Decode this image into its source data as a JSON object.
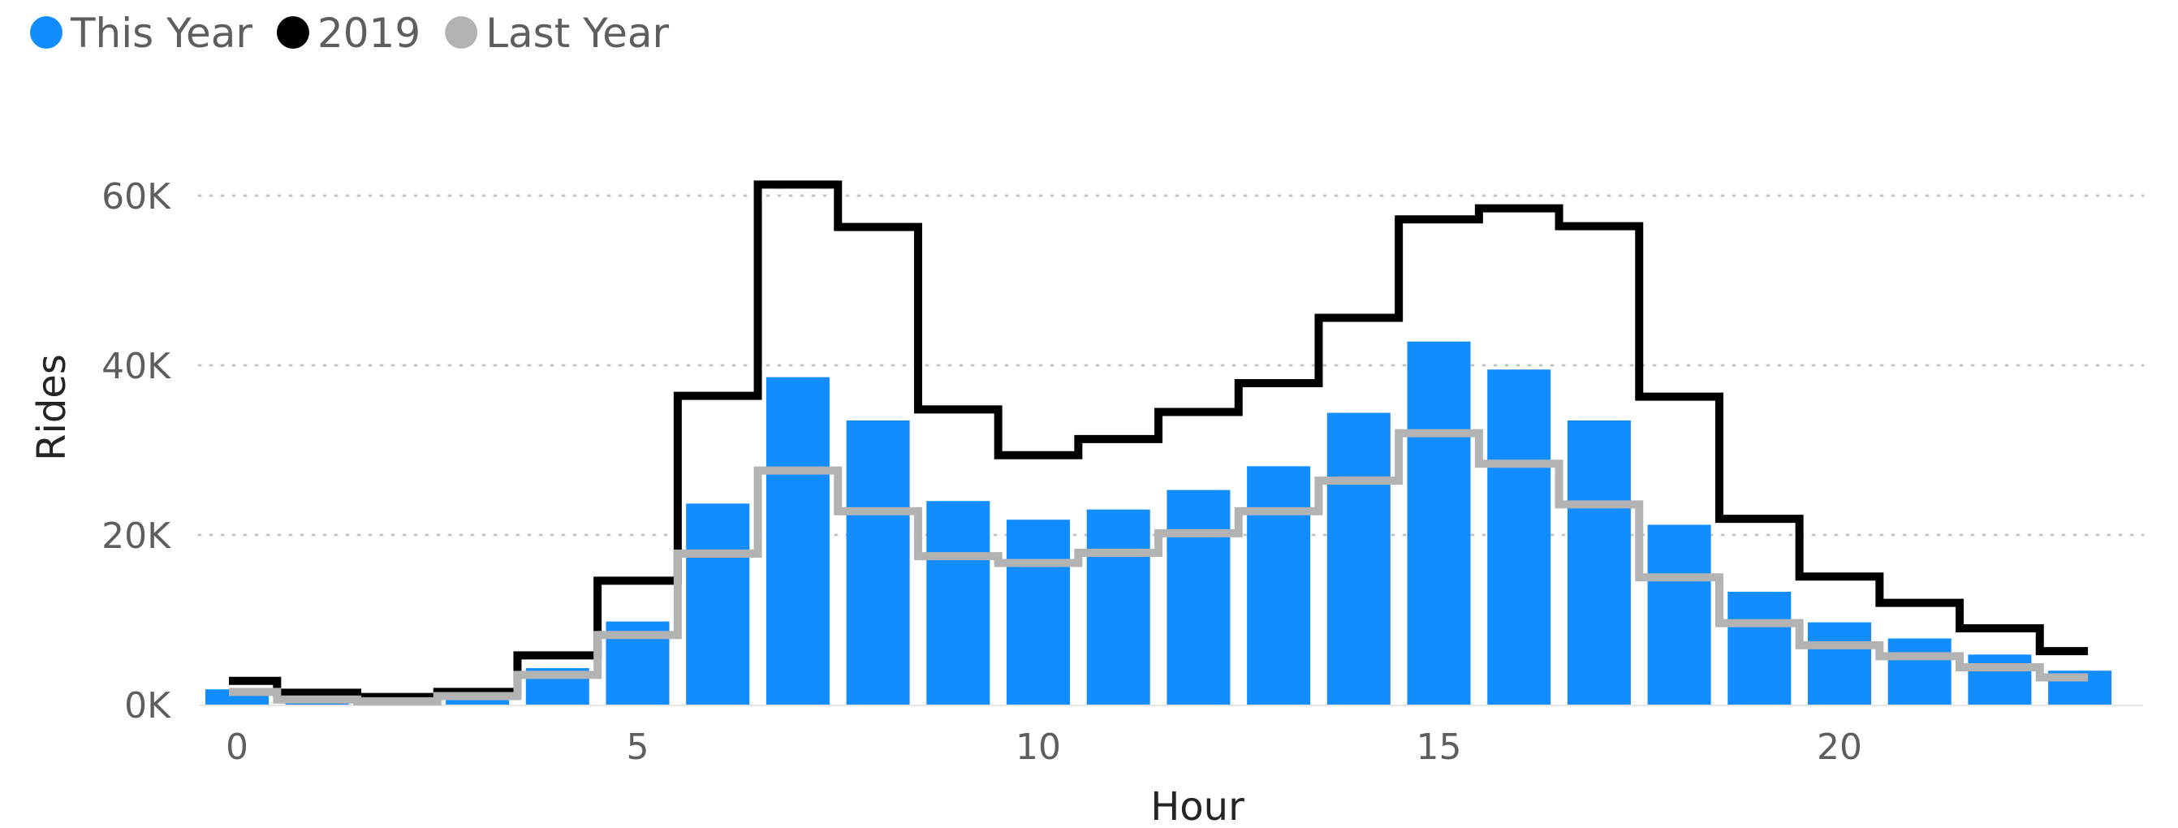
{
  "chart_data": {
    "type": "bar",
    "xlabel": "Hour",
    "ylabel": "Rides",
    "xlim": [
      -0.5,
      23.5
    ],
    "ylim": [
      0,
      65000
    ],
    "x_ticks": [
      0,
      5,
      10,
      15,
      20
    ],
    "x_tick_labels": [
      "0",
      "5",
      "10",
      "15",
      "20"
    ],
    "y_ticks": [
      0,
      20000,
      40000,
      60000
    ],
    "y_tick_labels": [
      "0K",
      "20K",
      "40K",
      "60K"
    ],
    "grid": "horizontal dotted",
    "legend_position": "top-left",
    "legend": [
      {
        "label": "This Year",
        "color": "#118DFF"
      },
      {
        "label": "2019",
        "color": "#000000"
      },
      {
        "label": "Last Year",
        "color": "#B3B3B3"
      }
    ],
    "categories": [
      0,
      1,
      2,
      3,
      4,
      5,
      6,
      7,
      8,
      9,
      10,
      11,
      12,
      13,
      14,
      15,
      16,
      17,
      18,
      19,
      20,
      21,
      22,
      23
    ],
    "series": [
      {
        "name": "This Year",
        "type": "bar",
        "color": "#118DFF",
        "values": [
          1800,
          1000,
          600,
          600,
          4300,
          9800,
          23700,
          38600,
          33500,
          24000,
          21800,
          23000,
          25300,
          28100,
          34400,
          42800,
          39500,
          33500,
          21200,
          13300,
          9700,
          7800,
          5900,
          4000
        ]
      },
      {
        "name": "2019",
        "type": "step",
        "color": "#000000",
        "values": [
          2800,
          1400,
          900,
          1500,
          5800,
          14600,
          36400,
          61300,
          56300,
          34800,
          29400,
          31300,
          34500,
          37900,
          45600,
          57200,
          58500,
          56400,
          36300,
          21900,
          15100,
          12000,
          9000,
          6300
        ]
      },
      {
        "name": "Last Year",
        "type": "step",
        "color": "#B3B3B3",
        "values": [
          1500,
          600,
          400,
          1000,
          3500,
          8200,
          17800,
          27600,
          22800,
          17500,
          16700,
          17900,
          20200,
          22800,
          26400,
          32000,
          28400,
          23600,
          15000,
          9600,
          7000,
          5700,
          4400,
          3200
        ]
      }
    ]
  }
}
